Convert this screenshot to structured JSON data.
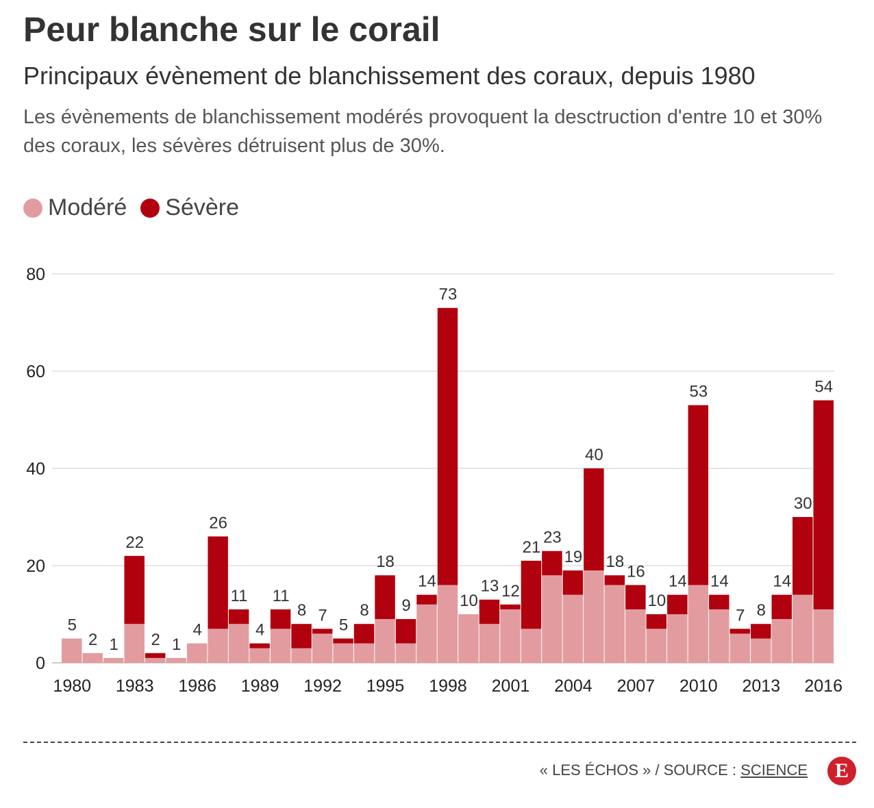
{
  "header": {
    "title": "Peur blanche sur le corail",
    "subtitle": "Principaux évènement de blanchissement des coraux, depuis 1980",
    "description": "Les évènements de blanchissement modérés provoquent la desctruction d'entre 10 et 30% des coraux, les sévères détruisent plus de 30%."
  },
  "colors": {
    "moderate": "#e29ca0",
    "severe": "#b1000e"
  },
  "chart_data": {
    "type": "bar",
    "stacked": true,
    "categories": [
      "1980",
      "1981",
      "1982",
      "1983",
      "1984",
      "1985",
      "1986",
      "1987",
      "1988",
      "1989",
      "1990",
      "1991",
      "1992",
      "1993",
      "1994",
      "1995",
      "1996",
      "1997",
      "1998",
      "1999",
      "2000",
      "2001",
      "2002",
      "2003",
      "2004",
      "2005",
      "2006",
      "2007",
      "2008",
      "2009",
      "2010",
      "2011",
      "2012",
      "2013",
      "2014",
      "2015",
      "2016"
    ],
    "tick_labels": [
      "1980",
      "1983",
      "1986",
      "1989",
      "1992",
      "1995",
      "1998",
      "2001",
      "2004",
      "2007",
      "2010",
      "2013",
      "2016"
    ],
    "series": [
      {
        "name": "Modéré",
        "values": [
          5,
          2,
          1,
          8,
          1,
          1,
          4,
          7,
          8,
          3,
          7,
          3,
          6,
          4,
          4,
          9,
          4,
          12,
          16,
          10,
          8,
          11,
          7,
          18,
          14,
          19,
          16,
          11,
          7,
          10,
          16,
          11,
          6,
          5,
          9,
          14,
          11
        ]
      },
      {
        "name": "Sévère",
        "values": [
          0,
          0,
          0,
          14,
          1,
          0,
          0,
          19,
          3,
          1,
          4,
          5,
          1,
          1,
          4,
          9,
          5,
          2,
          57,
          0,
          5,
          1,
          14,
          5,
          5,
          21,
          2,
          5,
          3,
          4,
          37,
          3,
          1,
          3,
          5,
          16,
          43
        ]
      }
    ],
    "totals": [
      5,
      2,
      1,
      22,
      2,
      1,
      4,
      26,
      11,
      4,
      11,
      8,
      7,
      5,
      8,
      18,
      9,
      14,
      73,
      10,
      13,
      12,
      21,
      23,
      19,
      40,
      18,
      16,
      10,
      14,
      53,
      14,
      7,
      8,
      14,
      30,
      54
    ],
    "ylim": [
      0,
      80
    ],
    "yticks": [
      0,
      20,
      40,
      60,
      80
    ],
    "grid": true,
    "legend_position": "top-left"
  },
  "footer": {
    "source_prefix": "« LES ÉCHOS » / SOURCE : ",
    "source_name": "SCIENCE",
    "logo_letter": "E"
  }
}
